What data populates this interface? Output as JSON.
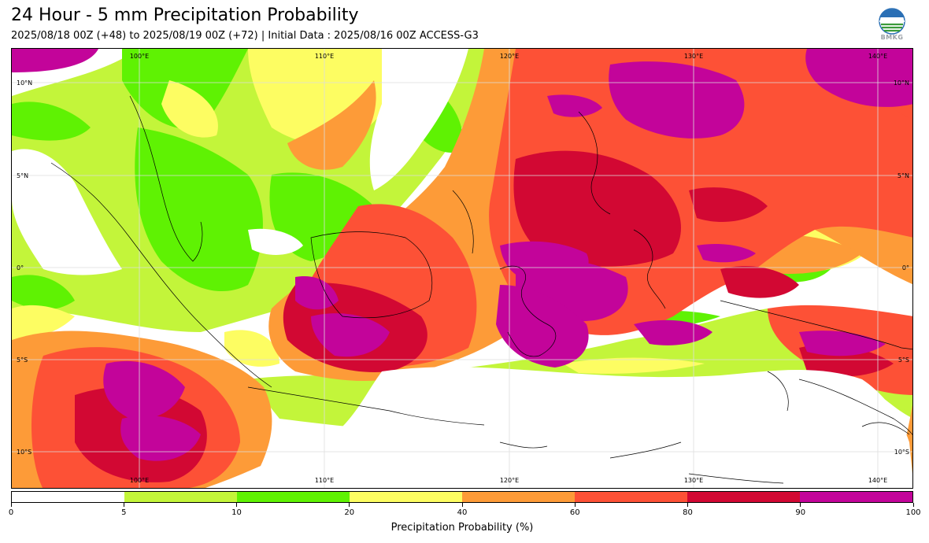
{
  "header": {
    "title": "24 Hour - 5 mm Precipitation Probability",
    "subtitle": "2025/08/18 00Z (+48) to 2025/08/19 00Z (+72) | Initial Data : 2025/08/16 00Z ACCESS-G3",
    "logo_text": "BMKG"
  },
  "map": {
    "lon_labels_top": [
      "100°E",
      "110°E",
      "120°E",
      "130°E",
      "140°E"
    ],
    "lon_labels_bottom": [
      "100°E",
      "110°E",
      "120°E",
      "130°E",
      "140°E"
    ],
    "lat_labels_left": [
      "10°N",
      "5°N",
      "0°",
      "5°S",
      "10°S"
    ],
    "lat_labels_right": [
      "10°N",
      "5°N",
      "0°",
      "5°S",
      "10°S"
    ]
  },
  "legend": {
    "title": "Precipitation Probability (%)",
    "ticks": [
      "0",
      "5",
      "10",
      "20",
      "40",
      "60",
      "80",
      "90",
      "100"
    ],
    "colors": [
      "#ffffff",
      "#c3f53a",
      "#5ff203",
      "#fdfd62",
      "#fd9b38",
      "#fd5136",
      "#d20833",
      "#c3049a"
    ]
  }
}
